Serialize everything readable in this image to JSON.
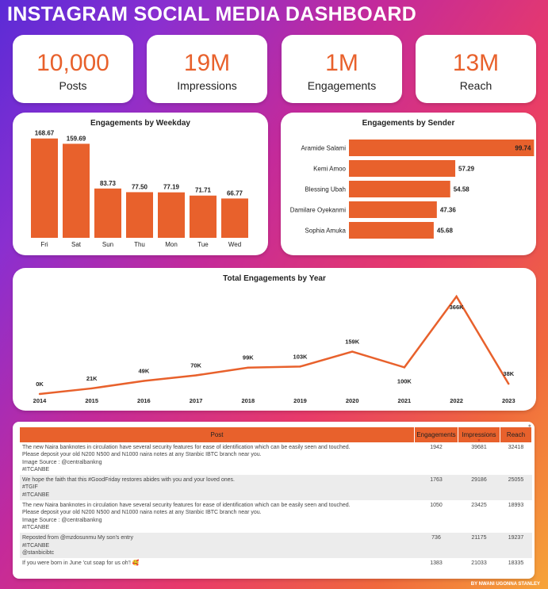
{
  "title": "INSTAGRAM SOCIAL MEDIA DASHBOARD",
  "kpis": [
    {
      "value": "10,000",
      "label": "Posts"
    },
    {
      "value": "19M",
      "label": "Impressions"
    },
    {
      "value": "1M",
      "label": "Engagements"
    },
    {
      "value": "13M",
      "label": "Reach"
    }
  ],
  "colors": {
    "accent": "#e8612c",
    "card": "#ffffff"
  },
  "chart_data": [
    {
      "type": "bar",
      "title": "Engagements by Weekday",
      "categories": [
        "Fri",
        "Sat",
        "Sun",
        "Thu",
        "Mon",
        "Tue",
        "Wed"
      ],
      "values": [
        168.67,
        159.69,
        83.73,
        77.5,
        77.19,
        71.71,
        66.77
      ],
      "labels": [
        "168.67",
        "159.69",
        "83.73",
        "77.50",
        "77.19",
        "71.71",
        "66.77"
      ]
    },
    {
      "type": "bar",
      "orientation": "horizontal",
      "title": "Engagements by Sender",
      "categories": [
        "Aramide Salami",
        "Kemi Amoo",
        "Blessing Ubah",
        "Damilare Oyekanmi",
        "Sophia Amuka"
      ],
      "values": [
        99.74,
        57.29,
        54.58,
        47.36,
        45.68
      ],
      "labels": [
        "99.74",
        "57.29",
        "54.58",
        "47.36",
        "45.68"
      ]
    },
    {
      "type": "line",
      "title": "Total Engagements by Year",
      "x": [
        "2014",
        "2015",
        "2016",
        "2017",
        "2018",
        "2019",
        "2020",
        "2021",
        "2022",
        "2023"
      ],
      "values": [
        0,
        21000,
        49000,
        70000,
        99000,
        103000,
        159000,
        100000,
        366000,
        38000
      ],
      "labels": [
        "0K",
        "21K",
        "49K",
        "70K",
        "99K",
        "103K",
        "159K",
        "100K",
        "366K",
        "38K"
      ]
    }
  ],
  "table": {
    "headers": [
      "Post",
      "Engagements",
      "Impressions",
      "Reach"
    ],
    "rows": [
      {
        "post": "The new Naira banknotes in circulation have several security features for ease of identification which can be easily seen and touched.\nPlease deposit your old N200 N500 and N1000 naira notes at any Stanbic IBTC branch near you.\nImage Source  : @centralbankng\n#ITCANBE",
        "engagements": "1942",
        "impressions": "39681",
        "reach": "32418"
      },
      {
        "post": "We hope the faith that this #GoodFriday restores abides with you and your loved ones.\n#TGIF\n#ITCANBE",
        "engagements": "1763",
        "impressions": "29186",
        "reach": "25055"
      },
      {
        "post": "The new Naira banknotes in circulation have several security features for ease of identification which can be easily seen and touched.\nPlease deposit your old N200 N500 and N1000 naira notes at any Stanbic IBTC branch near you.\nImage Source  : @centralbankng\n#ITCANBE",
        "engagements": "1050",
        "impressions": "23425",
        "reach": "18993"
      },
      {
        "post": "Reposted from @mzdosunmu My son's entry\n#ITCANBE\n@stanbicibtc",
        "engagements": "736",
        "impressions": "21175",
        "reach": "19237"
      },
      {
        "post": "If you were born in June 'cut soap for us oh'! 🥰",
        "engagements": "1383",
        "impressions": "21033",
        "reach": "18335"
      }
    ]
  },
  "credit": "BY NWANI UGONNA STANLEY"
}
